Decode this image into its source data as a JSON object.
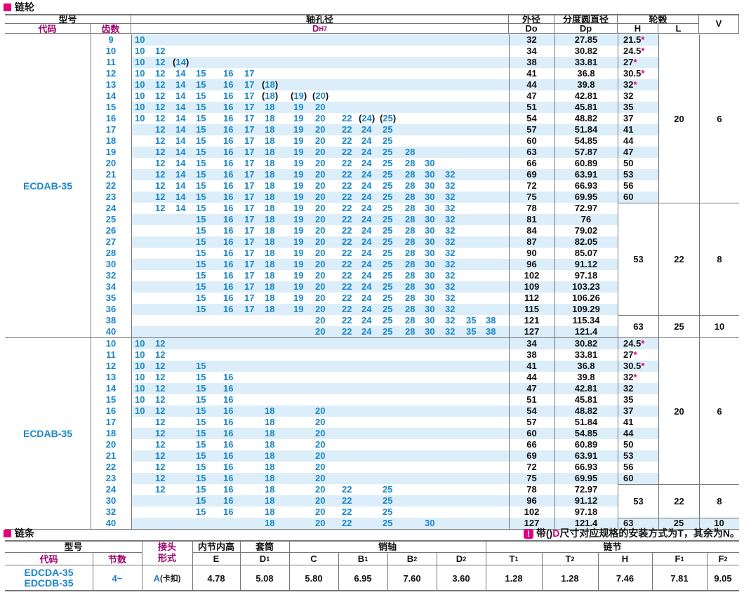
{
  "section1_title": "链轮",
  "section2_title": "链条",
  "note": {
    "icon": "!",
    "t1": "带(",
    "t2": ")",
    "t3": "D",
    "t4": "尺寸对应规格的安装方式为T，其余为N。"
  },
  "header": {
    "model": "型号",
    "code": "代码",
    "teeth": "齿数",
    "bore": "轴孔径",
    "dh7_d": "D",
    "dh7_sub": "H7",
    "od_top": "外径",
    "od_bot": "Do",
    "pcd_top": "分度圆直径",
    "pcd_bot": "Dp",
    "hub": "轮毂",
    "h": "H",
    "l": "L",
    "v": "V"
  },
  "group_a": {
    "code": "ECDAB-35",
    "rows": [
      {
        "n": "9",
        "d": "10",
        "do": "32",
        "dp": "27.85",
        "h": "21.5",
        "star": true
      },
      {
        "n": "10",
        "d": "10 12",
        "do": "34",
        "dp": "30.82",
        "h": "24.5",
        "star": true
      },
      {
        "n": "11",
        "d": "10 12 (14)",
        "do": "38",
        "dp": "33.81",
        "h": "27",
        "star": true
      },
      {
        "n": "12",
        "d": "10 12 14 15 16 17",
        "do": "41",
        "dp": "36.8",
        "h": "30.5",
        "star": true
      },
      {
        "n": "13",
        "d": "10 12 14 15 16 17 (18)",
        "do": "44",
        "dp": "39.8",
        "h": "32",
        "star": true
      },
      {
        "n": "14",
        "d": "10 12 14 15 16 17 (18) (19) (20)",
        "do": "47",
        "dp": "42.81",
        "h": "32",
        "star": false
      },
      {
        "n": "15",
        "d": "10 12 14 15 16 17 18 19 20",
        "do": "51",
        "dp": "45.81",
        "h": "35",
        "star": false
      },
      {
        "n": "16",
        "d": "10 12 14 15 16 17 18 19 20 22 (24) (25)",
        "do": "54",
        "dp": "48.82",
        "h": "37",
        "star": false
      },
      {
        "n": "17",
        "d": "12 14 15 16 17 18 19 20 22 24 25",
        "do": "57",
        "dp": "51.84",
        "h": "41",
        "star": false
      },
      {
        "n": "18",
        "d": "12 14 15 16 17 18 19 20 22 24 25",
        "do": "60",
        "dp": "54.85",
        "h": "44",
        "star": false
      },
      {
        "n": "19",
        "d": "12 14 15 16 17 18 19 20 22 24 25 28",
        "do": "63",
        "dp": "57.87",
        "h": "47",
        "star": false
      },
      {
        "n": "20",
        "d": "12 14 15 16 17 18 19 20 22 24 25 28 30",
        "do": "66",
        "dp": "60.89",
        "h": "50",
        "star": false
      },
      {
        "n": "21",
        "d": "12 14 15 16 17 18 19 20 22 24 25 28 30 32",
        "do": "69",
        "dp": "63.91",
        "h": "53",
        "star": false
      },
      {
        "n": "22",
        "d": "12 14 15 16 17 18 19 20 22 24 25 28 30 32",
        "do": "72",
        "dp": "66.93",
        "h": "56",
        "star": false
      },
      {
        "n": "23",
        "d": "12 14 15 16 17 18 19 20 22 24 25 28 30 32",
        "do": "75",
        "dp": "69.95",
        "h": "60",
        "star": false
      },
      {
        "n": "24",
        "d": "12 14 15 16 17 18 19 20 22 24 25 28 30 32",
        "do": "78",
        "dp": "72.97",
        "h": "",
        "star": false
      },
      {
        "n": "25",
        "d": "15 16 17 18 19 20 22 24 25 28 30 32",
        "do": "81",
        "dp": "76",
        "h": "",
        "star": false
      },
      {
        "n": "26",
        "d": "15 16 17 18 19 20 22 24 25 28 30 32",
        "do": "84",
        "dp": "79.02",
        "h": "",
        "star": false
      },
      {
        "n": "27",
        "d": "15 16 17 18 19 20 22 24 25 28 30 32",
        "do": "87",
        "dp": "82.05",
        "h": "",
        "star": false
      },
      {
        "n": "28",
        "d": "15 16 17 18 19 20 22 24 25 28 30 32",
        "do": "90",
        "dp": "85.07",
        "h": "",
        "star": false
      },
      {
        "n": "30",
        "d": "15 16 17 18 19 20 22 24 25 28 30 32",
        "do": "96",
        "dp": "91.12",
        "h": "",
        "star": false
      },
      {
        "n": "32",
        "d": "15 16 17 18 19 20 22 24 25 28 30 32",
        "do": "102",
        "dp": "97.18",
        "h": "",
        "star": false
      },
      {
        "n": "34",
        "d": "15 16 17 18 19 20 22 24 25 28 30 32",
        "do": "109",
        "dp": "103.23",
        "h": "",
        "star": false
      },
      {
        "n": "35",
        "d": "15 16 17 18 19 20 22 24 25 28 30 32",
        "do": "112",
        "dp": "106.26",
        "h": "",
        "star": false
      },
      {
        "n": "36",
        "d": "15 16 17 18 19 20 22 24 25 28 30 32",
        "do": "115",
        "dp": "109.29",
        "h": "",
        "star": false
      },
      {
        "n": "38",
        "d": "20 22 24 25 28 30 32 35 38",
        "do": "121",
        "dp": "115.34",
        "h": "",
        "star": false
      },
      {
        "n": "40",
        "d": "20 22 24 25 28 30 32 35 38",
        "do": "127",
        "dp": "121.4",
        "h": "",
        "star": false
      }
    ],
    "merged": [
      {
        "from": 15,
        "to": 24,
        "h": "53",
        "l": "22",
        "v": "8"
      },
      {
        "from": 25,
        "to": 26,
        "h": "63",
        "l": "25",
        "v": "10"
      }
    ],
    "lv1": {
      "l": "20",
      "v": "6"
    }
  },
  "group_b": {
    "code": "ECDAB-35",
    "rows": [
      {
        "n": "10",
        "d": "10 12",
        "do": "34",
        "dp": "30.82",
        "h": "24.5",
        "star": true
      },
      {
        "n": "11",
        "d": "10 12",
        "do": "38",
        "dp": "33.81",
        "h": "27",
        "star": true
      },
      {
        "n": "12",
        "d": "10 12 15",
        "do": "41",
        "dp": "36.8",
        "h": "30.5",
        "star": true
      },
      {
        "n": "13",
        "d": "10 12 15 16",
        "do": "44",
        "dp": "39.8",
        "h": "32",
        "star": true
      },
      {
        "n": "14",
        "d": "10 12 15 16",
        "do": "47",
        "dp": "42.81",
        "h": "32",
        "star": false
      },
      {
        "n": "15",
        "d": "10 12 15 16",
        "do": "51",
        "dp": "45.81",
        "h": "35",
        "star": false
      },
      {
        "n": "16",
        "d": "10 12 15 16 18 20",
        "do": "54",
        "dp": "48.82",
        "h": "37",
        "star": false
      },
      {
        "n": "17",
        "d": "12 15 16 18 20",
        "do": "57",
        "dp": "51.84",
        "h": "41",
        "star": false
      },
      {
        "n": "18",
        "d": "12 15 16 18 20",
        "do": "60",
        "dp": "54.85",
        "h": "44",
        "star": false
      },
      {
        "n": "20",
        "d": "12 15 16 18 20",
        "do": "66",
        "dp": "60.89",
        "h": "50",
        "star": false
      },
      {
        "n": "21",
        "d": "12 15 16 18 20",
        "do": "69",
        "dp": "63.91",
        "h": "53",
        "star": false
      },
      {
        "n": "22",
        "d": "12 15 16 18 20",
        "do": "72",
        "dp": "66.93",
        "h": "56",
        "star": false
      },
      {
        "n": "23",
        "d": "12 15 16 18 20",
        "do": "75",
        "dp": "69.95",
        "h": "60",
        "star": false
      },
      {
        "n": "24",
        "d": "12 15 16 18 20 22 25",
        "do": "78",
        "dp": "72.97",
        "h": "",
        "star": false
      },
      {
        "n": "30",
        "d": "15 16 18 20 22 25",
        "do": "96",
        "dp": "91.12",
        "h": "",
        "star": false
      },
      {
        "n": "32",
        "d": "15 16 18 20 22 25",
        "do": "102",
        "dp": "97.18",
        "h": "",
        "star": false
      },
      {
        "n": "40",
        "d": "18 20 22 25 30",
        "do": "127",
        "dp": "121.4",
        "h": "63",
        "star": false
      }
    ],
    "merged": [
      {
        "from": 13,
        "to": 15,
        "h": "53",
        "l": "22",
        "v": "8"
      }
    ],
    "lv1": {
      "l": "20",
      "v": "6"
    },
    "last": {
      "l": "25",
      "v": "10"
    }
  },
  "chain": {
    "model": "型号",
    "code": "代码",
    "links": "节数",
    "joint1": "接头",
    "joint2": "形式",
    "inner": "内节内高",
    "sleeve": "套筒",
    "pin": "销轴",
    "pitch": "链节",
    "cols": [
      "E",
      "D1",
      "C",
      "B1",
      "B2",
      "D2",
      "T1",
      "T2",
      "H",
      "F1",
      "F2"
    ],
    "codes": [
      "EDCDA-35",
      "EDCDB-35"
    ],
    "nlinks": "4~",
    "joint_val": "A",
    "joint_note": "(卡扣)",
    "vals": [
      "4.78",
      "5.08",
      "5.80",
      "6.95",
      "7.60",
      "3.60",
      "1.28",
      "1.28",
      "7.46",
      "7.81",
      "9.05"
    ]
  }
}
